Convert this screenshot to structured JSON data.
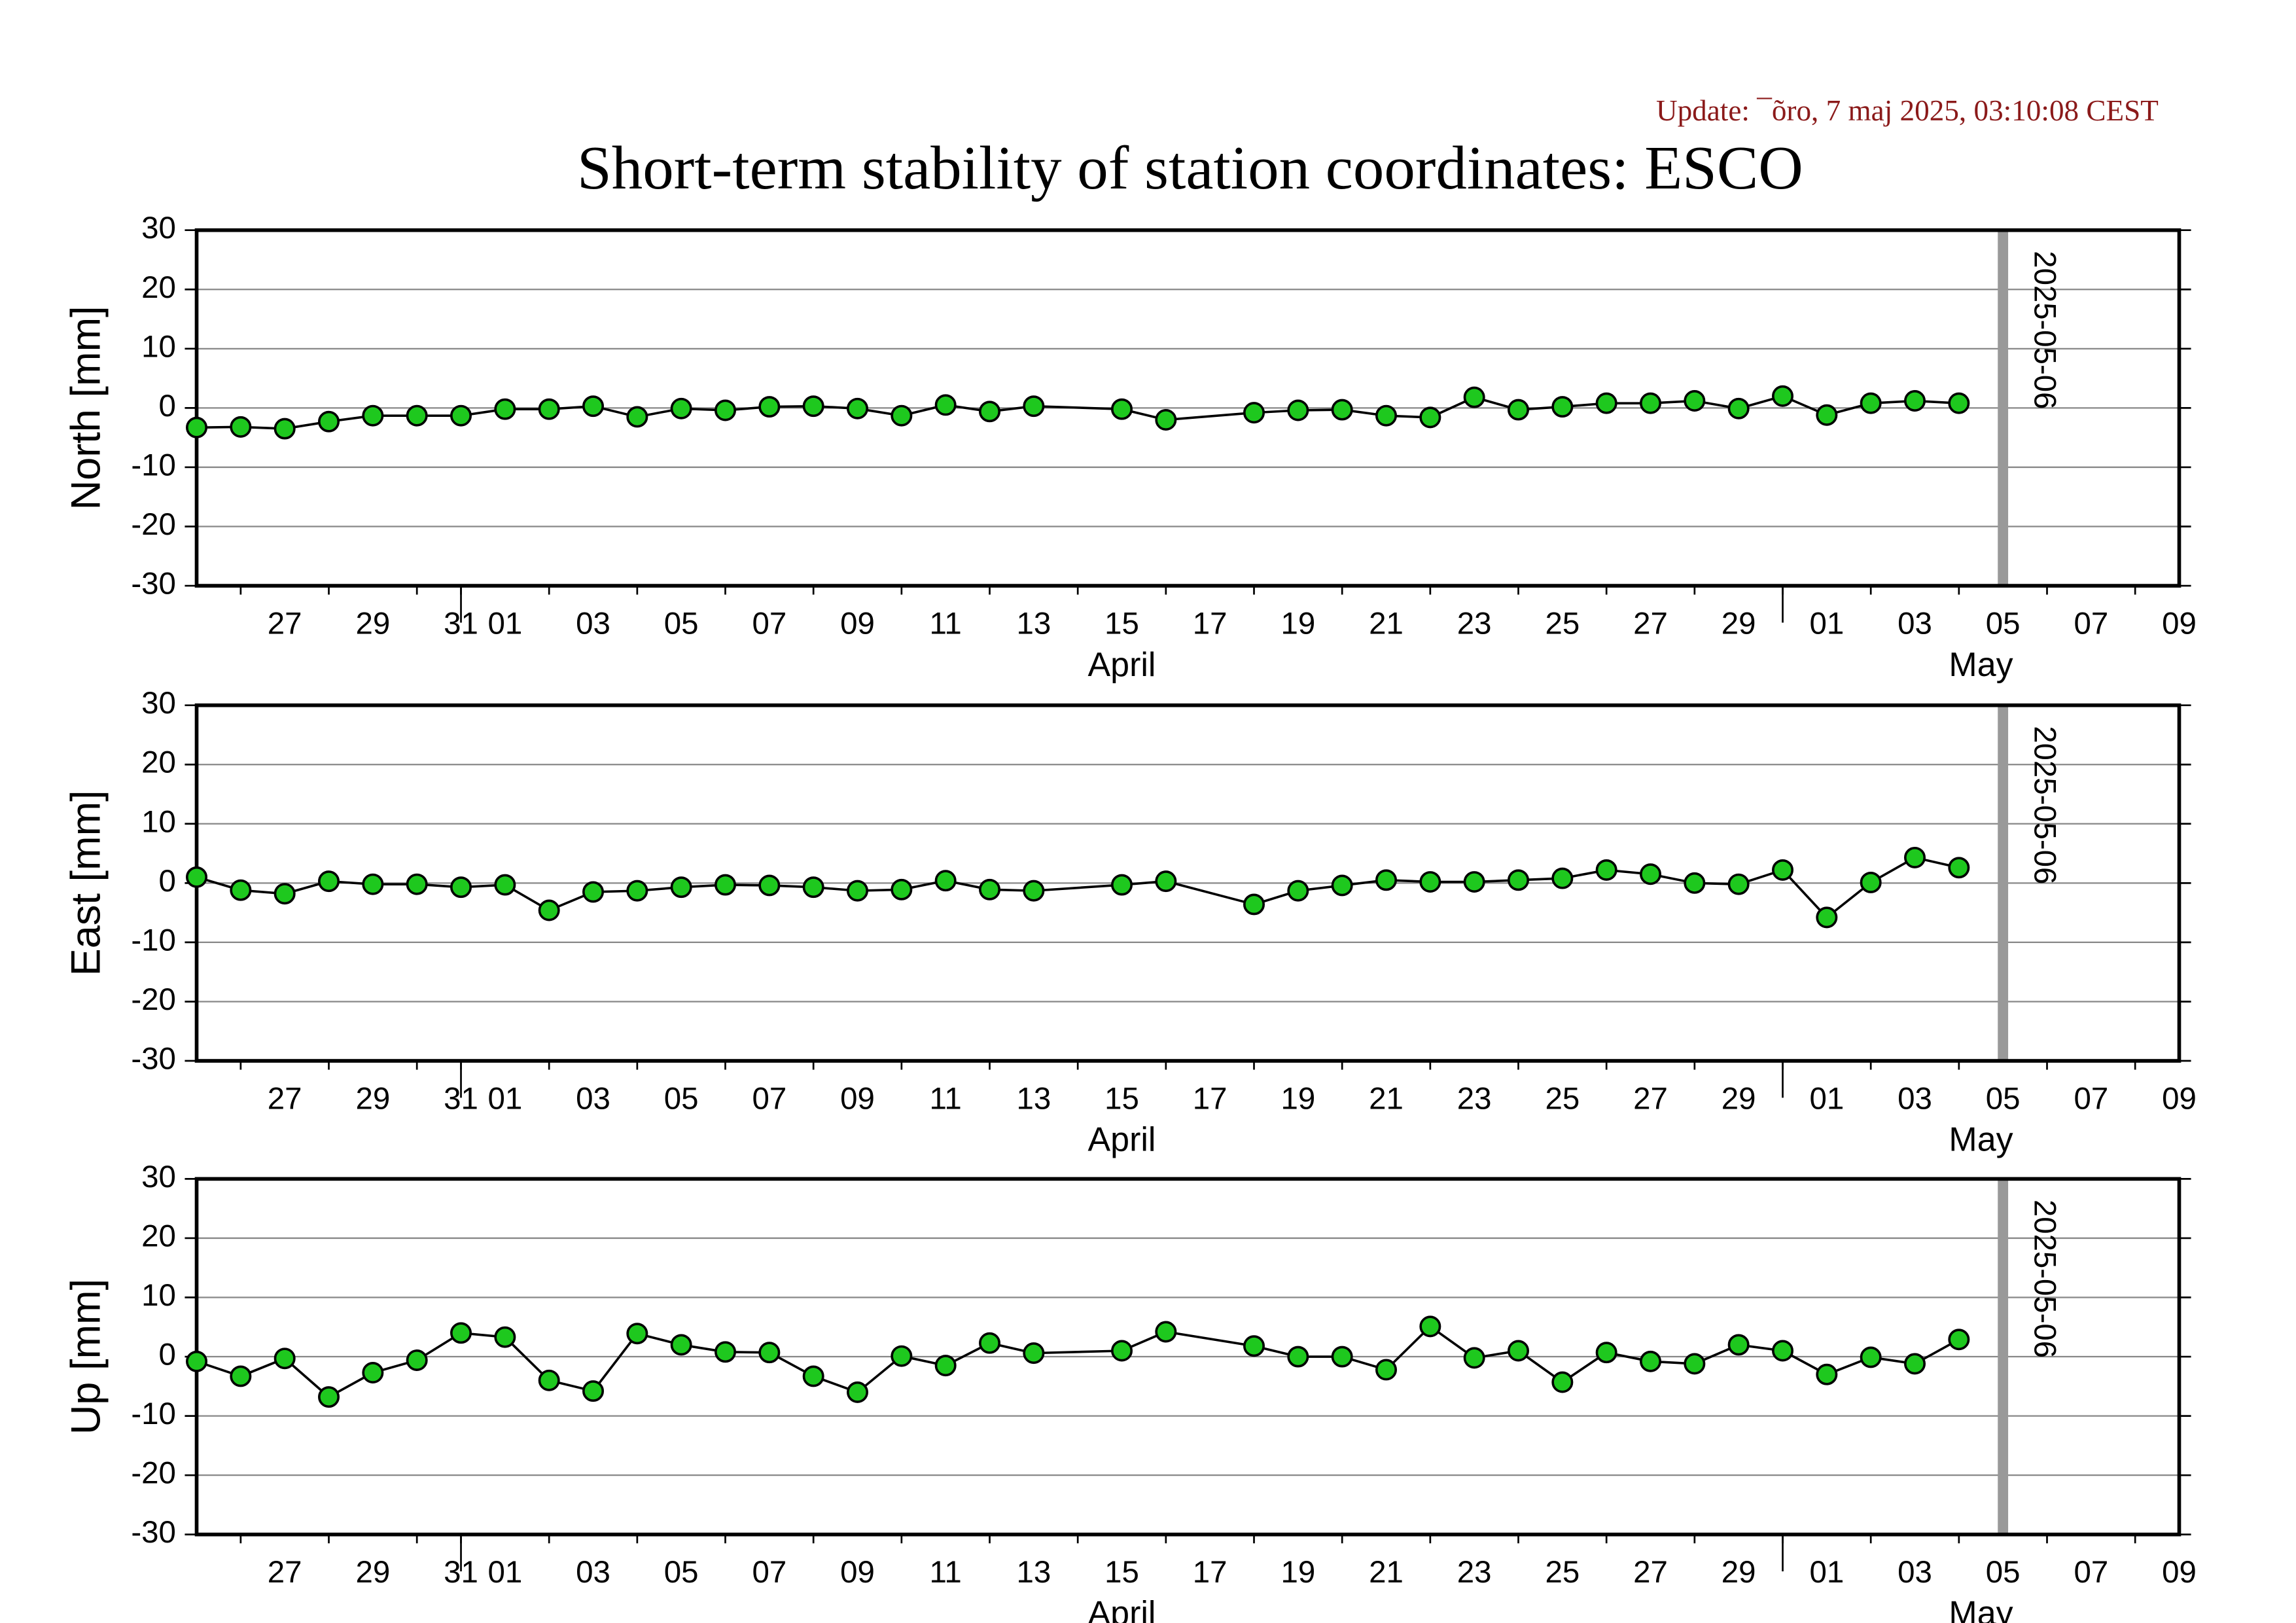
{
  "header": {
    "update": "Update: ¯õro, 7 maj 2025, 03:10:08 CEST",
    "title": "Short-term stability of station coordinates: ESCO"
  },
  "chart_data": [
    {
      "type": "line",
      "ylabel": "North [mm]",
      "color": "#000000",
      "marker_color": "#1ec81e",
      "x": [
        "2025-03-26",
        "2025-03-27",
        "2025-03-28",
        "2025-03-29",
        "2025-03-30",
        "2025-03-31",
        "2025-04-01",
        "2025-04-02",
        "2025-04-03",
        "2025-04-04",
        "2025-04-05",
        "2025-04-06",
        "2025-04-07",
        "2025-04-08",
        "2025-04-09",
        "2025-04-10",
        "2025-04-11",
        "2025-04-12",
        "2025-04-13",
        "2025-04-14",
        "2025-04-16",
        "2025-04-17",
        "2025-04-19",
        "2025-04-20",
        "2025-04-21",
        "2025-04-22",
        "2025-04-23",
        "2025-04-24",
        "2025-04-25",
        "2025-04-26",
        "2025-04-27",
        "2025-04-28",
        "2025-04-29",
        "2025-04-30",
        "2025-05-01",
        "2025-05-02",
        "2025-05-03",
        "2025-05-04",
        "2025-05-05"
      ],
      "values": [
        -3.3,
        -3.2,
        -3.5,
        -2.3,
        -1.3,
        -1.3,
        -1.3,
        -0.2,
        -0.2,
        0.3,
        -1.5,
        -0.1,
        -0.4,
        0.2,
        0.3,
        -0.1,
        -1.3,
        0.5,
        -0.6,
        0.3,
        -0.2,
        -2.0,
        -0.8,
        -0.4,
        -0.3,
        -1.3,
        -1.6,
        1.8,
        -0.3,
        0.2,
        0.8,
        0.8,
        1.2,
        -0.1,
        2.0,
        -1.2,
        0.8,
        1.2,
        0.8
      ],
      "ylim": [
        -30,
        30
      ],
      "yticks": [
        -30,
        -20,
        -10,
        0,
        10,
        20,
        30
      ],
      "grid": true,
      "xlim": [
        "2025-03-26",
        "2025-05-10"
      ],
      "xticks": [
        {
          "value": "2025-03-27",
          "label": "27"
        },
        {
          "value": "2025-03-29",
          "label": "29"
        },
        {
          "value": "2025-03-31",
          "label": "31"
        },
        {
          "value": "2025-04-01",
          "label": "01"
        },
        {
          "value": "2025-04-03",
          "label": "03"
        },
        {
          "value": "2025-04-05",
          "label": "05"
        },
        {
          "value": "2025-04-07",
          "label": "07"
        },
        {
          "value": "2025-04-09",
          "label": "09"
        },
        {
          "value": "2025-04-11",
          "label": "11"
        },
        {
          "value": "2025-04-13",
          "label": "13"
        },
        {
          "value": "2025-04-15",
          "label": "15"
        },
        {
          "value": "2025-04-17",
          "label": "17"
        },
        {
          "value": "2025-04-19",
          "label": "19"
        },
        {
          "value": "2025-04-21",
          "label": "21"
        },
        {
          "value": "2025-04-23",
          "label": "23"
        },
        {
          "value": "2025-04-25",
          "label": "25"
        },
        {
          "value": "2025-04-27",
          "label": "27"
        },
        {
          "value": "2025-04-29",
          "label": "29"
        },
        {
          "value": "2025-05-01",
          "label": "01"
        },
        {
          "value": "2025-05-03",
          "label": "03"
        },
        {
          "value": "2025-05-05",
          "label": "05"
        },
        {
          "value": "2025-05-07",
          "label": "07"
        },
        {
          "value": "2025-05-09",
          "label": "09"
        }
      ],
      "xmonths": [
        {
          "value": "2025-04-01",
          "label": "April"
        },
        {
          "value": "2025-05-01",
          "label": "May"
        }
      ],
      "vline": {
        "x": "2025-05-06",
        "label": "2025-05-06",
        "color": "#999999"
      }
    },
    {
      "type": "line",
      "ylabel": "East [mm]",
      "color": "#000000",
      "marker_color": "#1ec81e",
      "x": [
        "2025-03-26",
        "2025-03-27",
        "2025-03-28",
        "2025-03-29",
        "2025-03-30",
        "2025-03-31",
        "2025-04-01",
        "2025-04-02",
        "2025-04-03",
        "2025-04-04",
        "2025-04-05",
        "2025-04-06",
        "2025-04-07",
        "2025-04-08",
        "2025-04-09",
        "2025-04-10",
        "2025-04-11",
        "2025-04-12",
        "2025-04-13",
        "2025-04-14",
        "2025-04-16",
        "2025-04-17",
        "2025-04-19",
        "2025-04-20",
        "2025-04-21",
        "2025-04-22",
        "2025-04-23",
        "2025-04-24",
        "2025-04-25",
        "2025-04-26",
        "2025-04-27",
        "2025-04-28",
        "2025-04-29",
        "2025-04-30",
        "2025-05-01",
        "2025-05-02",
        "2025-05-03",
        "2025-05-04",
        "2025-05-05"
      ],
      "values": [
        1.0,
        -1.2,
        -1.8,
        0.3,
        -0.2,
        -0.2,
        -0.7,
        -0.3,
        -4.6,
        -1.5,
        -1.3,
        -0.7,
        -0.3,
        -0.4,
        -0.7,
        -1.3,
        -1.1,
        0.4,
        -1.1,
        -1.3,
        -0.3,
        0.3,
        -3.6,
        -1.3,
        -0.4,
        0.5,
        0.2,
        0.2,
        0.5,
        0.8,
        2.2,
        1.5,
        0.0,
        -0.2,
        2.2,
        -5.8,
        0.1,
        4.3,
        2.6
      ],
      "ylim": [
        -30,
        30
      ],
      "yticks": [
        -30,
        -20,
        -10,
        0,
        10,
        20,
        30
      ],
      "grid": true,
      "xlim": [
        "2025-03-26",
        "2025-05-10"
      ],
      "xticks": [
        {
          "value": "2025-03-27",
          "label": "27"
        },
        {
          "value": "2025-03-29",
          "label": "29"
        },
        {
          "value": "2025-03-31",
          "label": "31"
        },
        {
          "value": "2025-04-01",
          "label": "01"
        },
        {
          "value": "2025-04-03",
          "label": "03"
        },
        {
          "value": "2025-04-05",
          "label": "05"
        },
        {
          "value": "2025-04-07",
          "label": "07"
        },
        {
          "value": "2025-04-09",
          "label": "09"
        },
        {
          "value": "2025-04-11",
          "label": "11"
        },
        {
          "value": "2025-04-13",
          "label": "13"
        },
        {
          "value": "2025-04-15",
          "label": "15"
        },
        {
          "value": "2025-04-17",
          "label": "17"
        },
        {
          "value": "2025-04-19",
          "label": "19"
        },
        {
          "value": "2025-04-21",
          "label": "21"
        },
        {
          "value": "2025-04-23",
          "label": "23"
        },
        {
          "value": "2025-04-25",
          "label": "25"
        },
        {
          "value": "2025-04-27",
          "label": "27"
        },
        {
          "value": "2025-04-29",
          "label": "29"
        },
        {
          "value": "2025-05-01",
          "label": "01"
        },
        {
          "value": "2025-05-03",
          "label": "03"
        },
        {
          "value": "2025-05-05",
          "label": "05"
        },
        {
          "value": "2025-05-07",
          "label": "07"
        },
        {
          "value": "2025-05-09",
          "label": "09"
        }
      ],
      "xmonths": [
        {
          "value": "2025-04-01",
          "label": "April"
        },
        {
          "value": "2025-05-01",
          "label": "May"
        }
      ],
      "vline": {
        "x": "2025-05-06",
        "label": "2025-05-06",
        "color": "#999999"
      }
    },
    {
      "type": "line",
      "ylabel": "Up [mm]",
      "color": "#000000",
      "marker_color": "#1ec81e",
      "x": [
        "2025-03-26",
        "2025-03-27",
        "2025-03-28",
        "2025-03-29",
        "2025-03-30",
        "2025-03-31",
        "2025-04-01",
        "2025-04-02",
        "2025-04-03",
        "2025-04-04",
        "2025-04-05",
        "2025-04-06",
        "2025-04-07",
        "2025-04-08",
        "2025-04-09",
        "2025-04-10",
        "2025-04-11",
        "2025-04-12",
        "2025-04-13",
        "2025-04-14",
        "2025-04-16",
        "2025-04-17",
        "2025-04-19",
        "2025-04-20",
        "2025-04-21",
        "2025-04-22",
        "2025-04-23",
        "2025-04-24",
        "2025-04-25",
        "2025-04-26",
        "2025-04-27",
        "2025-04-28",
        "2025-04-29",
        "2025-04-30",
        "2025-05-01",
        "2025-05-02",
        "2025-05-03",
        "2025-05-04",
        "2025-05-05"
      ],
      "values": [
        -0.8,
        -3.3,
        -0.3,
        -6.8,
        -2.7,
        -0.6,
        4.0,
        3.3,
        -4.0,
        -5.8,
        3.9,
        2.0,
        0.8,
        0.7,
        -3.3,
        -6.0,
        0.1,
        -1.5,
        2.3,
        0.6,
        1.0,
        4.2,
        1.8,
        0.0,
        0.0,
        -2.2,
        5.1,
        -0.2,
        1.0,
        -4.3,
        0.7,
        -0.8,
        -1.2,
        2.0,
        1.0,
        -3.0,
        -0.1,
        -1.2,
        2.9
      ],
      "ylim": [
        -30,
        30
      ],
      "yticks": [
        -30,
        -20,
        -10,
        0,
        10,
        20,
        30
      ],
      "grid": true,
      "xlim": [
        "2025-03-26",
        "2025-05-10"
      ],
      "xticks": [
        {
          "value": "2025-03-27",
          "label": "27"
        },
        {
          "value": "2025-03-29",
          "label": "29"
        },
        {
          "value": "2025-03-31",
          "label": "31"
        },
        {
          "value": "2025-04-01",
          "label": "01"
        },
        {
          "value": "2025-04-03",
          "label": "03"
        },
        {
          "value": "2025-04-05",
          "label": "05"
        },
        {
          "value": "2025-04-07",
          "label": "07"
        },
        {
          "value": "2025-04-09",
          "label": "09"
        },
        {
          "value": "2025-04-11",
          "label": "11"
        },
        {
          "value": "2025-04-13",
          "label": "13"
        },
        {
          "value": "2025-04-15",
          "label": "15"
        },
        {
          "value": "2025-04-17",
          "label": "17"
        },
        {
          "value": "2025-04-19",
          "label": "19"
        },
        {
          "value": "2025-04-21",
          "label": "21"
        },
        {
          "value": "2025-04-23",
          "label": "23"
        },
        {
          "value": "2025-04-25",
          "label": "25"
        },
        {
          "value": "2025-04-27",
          "label": "27"
        },
        {
          "value": "2025-04-29",
          "label": "29"
        },
        {
          "value": "2025-05-01",
          "label": "01"
        },
        {
          "value": "2025-05-03",
          "label": "03"
        },
        {
          "value": "2025-05-05",
          "label": "05"
        },
        {
          "value": "2025-05-07",
          "label": "07"
        },
        {
          "value": "2025-05-09",
          "label": "09"
        }
      ],
      "xmonths": [
        {
          "value": "2025-04-01",
          "label": "April"
        },
        {
          "value": "2025-05-01",
          "label": "May"
        }
      ],
      "vline": {
        "x": "2025-05-06",
        "label": "2025-05-06",
        "color": "#999999"
      }
    }
  ]
}
